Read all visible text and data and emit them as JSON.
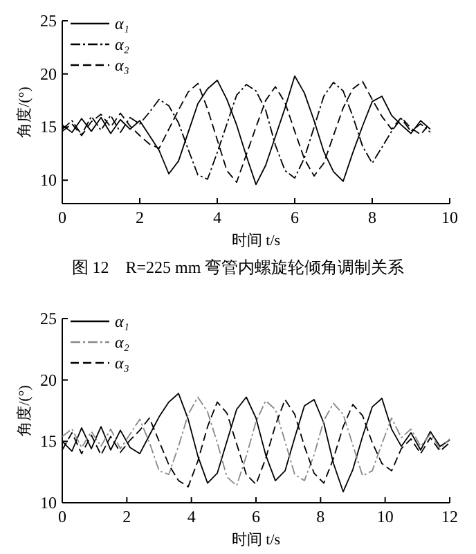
{
  "chart_data": [
    {
      "type": "line",
      "xlabel": "时间 t/s",
      "ylabel": "角度/(°)",
      "annotations": [
        "图 12　R=225 mm 弯管内螺旋轮倾角调制关系"
      ],
      "xlim": [
        0,
        10
      ],
      "ylim": [
        7.8,
        25
      ],
      "xticks": [
        0,
        2,
        4,
        6,
        8,
        10
      ],
      "yticks": [
        10,
        15,
        20,
        25
      ],
      "grid": false,
      "legend": "top left",
      "x": [
        0,
        0.25,
        0.5,
        0.75,
        1,
        1.25,
        1.5,
        1.75,
        2,
        2.25,
        2.5,
        2.75,
        3,
        3.25,
        3.5,
        3.75,
        4,
        4.25,
        4.5,
        4.75,
        5,
        5.25,
        5.5,
        5.75,
        6,
        6.25,
        6.5,
        6.75,
        7,
        7.25,
        7.5,
        7.75,
        8,
        8.25,
        8.5,
        8.75,
        9,
        9.25,
        9.5
      ],
      "series": [
        {
          "name": "α₁",
          "color": "#000000",
          "line_style": "solid",
          "values": [
            15.2,
            14.5,
            15.8,
            14.6,
            15.9,
            14.4,
            15.7,
            14.8,
            15.6,
            14.2,
            12.8,
            10.6,
            11.8,
            14.5,
            17.2,
            18.6,
            19.4,
            17.6,
            15.2,
            12.3,
            9.6,
            11.4,
            14.1,
            16.8,
            19.8,
            18.2,
            15.6,
            12.7,
            10.8,
            9.9,
            12.6,
            15.1,
            17.4,
            17.9,
            16.1,
            15.2,
            14.4,
            15.6,
            14.8
          ]
        },
        {
          "name": "α₂",
          "color": "#000000",
          "line_style": "dashdot",
          "values": [
            14.8,
            15.6,
            14.3,
            16.0,
            14.7,
            16.1,
            14.5,
            15.9,
            15.3,
            16.4,
            17.6,
            17.0,
            15.4,
            12.9,
            10.5,
            10.1,
            12.6,
            15.3,
            18.0,
            19.0,
            18.4,
            16.6,
            13.3,
            10.9,
            10.2,
            12.1,
            15.0,
            17.9,
            19.2,
            18.4,
            16.0,
            13.2,
            11.6,
            13.1,
            14.6,
            15.8,
            14.6,
            15.3,
            14.5
          ]
        },
        {
          "name": "α₃",
          "color": "#000000",
          "line_style": "dashed",
          "values": [
            14.6,
            15.3,
            14.2,
            15.5,
            16.2,
            15.0,
            16.3,
            15.1,
            14.2,
            13.4,
            13.0,
            14.8,
            16.6,
            18.3,
            19.1,
            16.7,
            13.8,
            10.9,
            9.8,
            12.4,
            15.0,
            17.5,
            18.8,
            17.3,
            14.6,
            12.0,
            10.4,
            11.6,
            14.2,
            16.8,
            18.6,
            19.3,
            17.6,
            16.0,
            14.8,
            15.9,
            14.9,
            14.3,
            15.4
          ]
        }
      ]
    },
    {
      "type": "line",
      "xlabel": "时间 t/s",
      "ylabel": "角度/(°)",
      "xlim": [
        0,
        12
      ],
      "ylim": [
        10,
        25
      ],
      "xticks": [
        0,
        2,
        4,
        6,
        8,
        10,
        12
      ],
      "yticks": [
        10,
        15,
        20,
        25
      ],
      "grid": false,
      "legend": "top left",
      "x": [
        0,
        0.3,
        0.6,
        0.9,
        1.2,
        1.5,
        1.8,
        2.1,
        2.4,
        2.7,
        3.0,
        3.3,
        3.6,
        3.9,
        4.2,
        4.5,
        4.8,
        5.1,
        5.4,
        5.7,
        6.0,
        6.3,
        6.6,
        6.9,
        7.2,
        7.5,
        7.8,
        8.1,
        8.4,
        8.7,
        9.0,
        9.3,
        9.6,
        9.9,
        10.2,
        10.5,
        10.8,
        11.1,
        11.4,
        11.7,
        12.0
      ],
      "series": [
        {
          "name": "α₁",
          "color": "#000000",
          "line_style": "solid",
          "values": [
            15.0,
            14.2,
            16.1,
            14.4,
            16.2,
            14.3,
            15.9,
            14.5,
            14.0,
            15.5,
            17.0,
            18.2,
            18.9,
            16.8,
            13.8,
            11.6,
            12.4,
            15.0,
            17.6,
            18.6,
            16.9,
            13.9,
            11.8,
            12.6,
            15.3,
            17.9,
            18.4,
            16.5,
            13.2,
            10.9,
            12.7,
            15.4,
            17.8,
            18.5,
            16.0,
            14.6,
            15.7,
            14.3,
            15.8,
            14.6,
            15.1
          ]
        },
        {
          "name": "α₂",
          "color": "#888888",
          "line_style": "dashdot",
          "values": [
            15.4,
            16.0,
            14.5,
            15.8,
            14.6,
            16.0,
            14.4,
            15.6,
            16.8,
            14.9,
            12.6,
            12.3,
            14.6,
            17.2,
            18.6,
            17.4,
            14.9,
            12.1,
            11.4,
            13.8,
            16.6,
            18.3,
            17.6,
            15.0,
            12.3,
            11.8,
            13.9,
            16.7,
            18.1,
            17.2,
            14.7,
            12.2,
            12.6,
            14.8,
            16.9,
            15.3,
            16.0,
            14.6,
            15.6,
            14.4,
            15.2
          ]
        },
        {
          "name": "α₃",
          "color": "#000000",
          "line_style": "dashed",
          "values": [
            14.3,
            15.7,
            14.0,
            15.5,
            13.9,
            15.4,
            14.1,
            15.1,
            15.9,
            16.9,
            15.0,
            13.1,
            11.8,
            11.3,
            13.4,
            16.2,
            18.2,
            17.3,
            14.8,
            12.3,
            11.5,
            13.6,
            16.3,
            18.4,
            17.2,
            14.6,
            12.4,
            11.6,
            13.6,
            16.2,
            18.0,
            17.1,
            14.9,
            13.2,
            12.6,
            14.4,
            15.2,
            14.0,
            15.3,
            14.2,
            14.9
          ]
        }
      ]
    }
  ]
}
